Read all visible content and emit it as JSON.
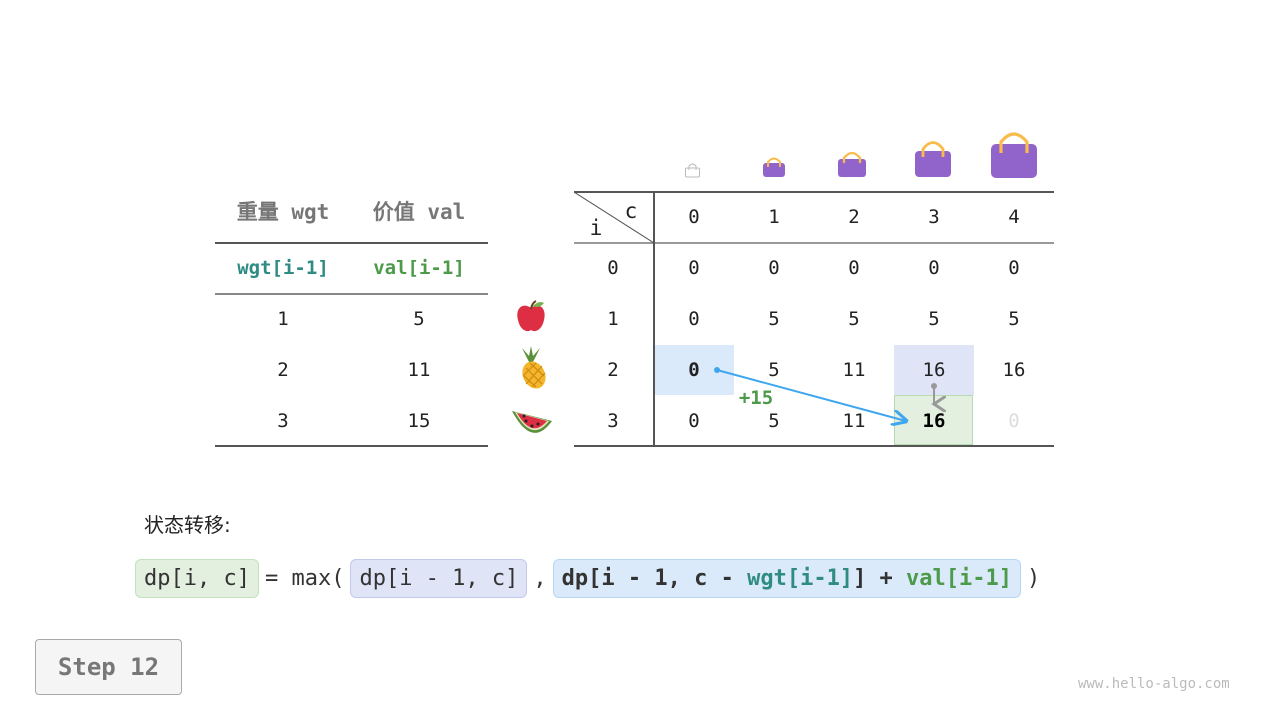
{
  "items_table": {
    "headers": [
      "重量 wgt",
      "价值 val"
    ],
    "subheaders": [
      "wgt[i-1]",
      "val[i-1]"
    ],
    "rows": [
      [
        "1",
        "5"
      ],
      [
        "2",
        "11"
      ],
      [
        "3",
        "15"
      ]
    ],
    "item_icons": [
      "apple-icon",
      "pineapple-icon",
      "watermelon-icon"
    ]
  },
  "dp_table": {
    "corner_row": "i",
    "corner_col": "c",
    "capacities": [
      "0",
      "1",
      "2",
      "3",
      "4"
    ],
    "row_labels": [
      "0",
      "1",
      "2",
      "3"
    ],
    "cells": [
      [
        "0",
        "0",
        "0",
        "0",
        "0"
      ],
      [
        "0",
        "5",
        "5",
        "5",
        "5"
      ],
      [
        "0",
        "5",
        "11",
        "16",
        "16"
      ],
      [
        "0",
        "5",
        "11",
        "16",
        "0"
      ]
    ]
  },
  "annotation": "+15",
  "colors": {
    "blue_highlight": "#dbeafa",
    "purple_highlight": "#e0e4f7",
    "green_highlight": "#e3f0e0",
    "arrow": "#3ea6ef",
    "teal": "#2f8c85",
    "green": "#4c9a4a"
  },
  "formula": {
    "label": "状态转移:",
    "lhs": "dp[i, c]",
    "eq": "= max(",
    "opt1": "dp[i - 1, c]",
    "comma": ",",
    "opt2_a": "dp[i - 1, c - ",
    "opt2_wgt": "wgt[i-1]",
    "opt2_b": "] + ",
    "opt2_val": "val[i-1]",
    "close": ")"
  },
  "step": "Step 12",
  "watermark": "www.hello-algo.com"
}
